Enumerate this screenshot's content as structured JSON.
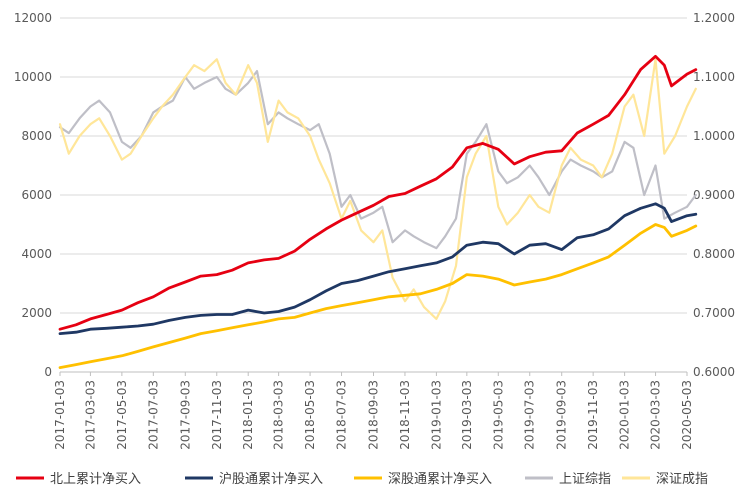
{
  "chart_data": {
    "type": "line",
    "title": "",
    "xlabel": "",
    "ylabel": "",
    "y_left_range": [
      0,
      12000
    ],
    "y_left_ticks": [
      0,
      2000,
      4000,
      6000,
      8000,
      10000,
      12000
    ],
    "y_right_range": [
      0.6,
      1.2
    ],
    "y_right_ticks": [
      "0.6000",
      "0.7000",
      "0.8000",
      "0.9000",
      "1.0000",
      "1.1000",
      "1.2000"
    ],
    "x_ticks": [
      "2017-01-03",
      "2017-03-03",
      "2017-05-03",
      "2017-07-03",
      "2017-09-03",
      "2017-11-03",
      "2018-01-03",
      "2018-03-03",
      "2018-05-03",
      "2018-07-03",
      "2018-09-03",
      "2018-11-03",
      "2019-01-03",
      "2019-03-03",
      "2019-05-03",
      "2019-07-03",
      "2019-09-03",
      "2019-11-03",
      "2020-01-03",
      "2020-03-03",
      "2020-05-03"
    ],
    "grid": "horizontal",
    "legend_position": "bottom",
    "series": [
      {
        "name": "北上累计净买入",
        "axis": "left",
        "color": "#e60012",
        "points": [
          [
            "2017-01-03",
            1450
          ],
          [
            "2017-02-03",
            1600
          ],
          [
            "2017-03-03",
            1800
          ],
          [
            "2017-04-03",
            1950
          ],
          [
            "2017-05-03",
            2100
          ],
          [
            "2017-06-03",
            2350
          ],
          [
            "2017-07-03",
            2550
          ],
          [
            "2017-08-03",
            2850
          ],
          [
            "2017-09-03",
            3050
          ],
          [
            "2017-10-03",
            3250
          ],
          [
            "2017-11-03",
            3300
          ],
          [
            "2017-12-03",
            3450
          ],
          [
            "2018-01-03",
            3700
          ],
          [
            "2018-02-03",
            3800
          ],
          [
            "2018-03-03",
            3850
          ],
          [
            "2018-04-03",
            4100
          ],
          [
            "2018-05-03",
            4500
          ],
          [
            "2018-06-03",
            4850
          ],
          [
            "2018-07-03",
            5150
          ],
          [
            "2018-08-03",
            5400
          ],
          [
            "2018-09-03",
            5650
          ],
          [
            "2018-10-03",
            5950
          ],
          [
            "2018-11-03",
            6050
          ],
          [
            "2018-12-03",
            6300
          ],
          [
            "2019-01-03",
            6550
          ],
          [
            "2019-02-03",
            6950
          ],
          [
            "2019-03-03",
            7600
          ],
          [
            "2019-04-03",
            7750
          ],
          [
            "2019-05-03",
            7550
          ],
          [
            "2019-06-03",
            7050
          ],
          [
            "2019-07-03",
            7300
          ],
          [
            "2019-08-03",
            7450
          ],
          [
            "2019-09-03",
            7500
          ],
          [
            "2019-10-03",
            8100
          ],
          [
            "2019-11-03",
            8400
          ],
          [
            "2019-12-03",
            8700
          ],
          [
            "2020-01-03",
            9400
          ],
          [
            "2020-02-03",
            10250
          ],
          [
            "2020-03-03",
            10700
          ],
          [
            "2020-03-20",
            10400
          ],
          [
            "2020-04-03",
            9700
          ],
          [
            "2020-05-03",
            10100
          ],
          [
            "2020-05-20",
            10250
          ]
        ]
      },
      {
        "name": "沪股通累计净买入",
        "axis": "left",
        "color": "#1f3864",
        "points": [
          [
            "2017-01-03",
            1300
          ],
          [
            "2017-02-03",
            1350
          ],
          [
            "2017-03-03",
            1450
          ],
          [
            "2017-04-03",
            1480
          ],
          [
            "2017-05-03",
            1520
          ],
          [
            "2017-06-03",
            1560
          ],
          [
            "2017-07-03",
            1620
          ],
          [
            "2017-08-03",
            1750
          ],
          [
            "2017-09-03",
            1850
          ],
          [
            "2017-10-03",
            1920
          ],
          [
            "2017-11-03",
            1950
          ],
          [
            "2017-12-03",
            1950
          ],
          [
            "2018-01-03",
            2100
          ],
          [
            "2018-02-03",
            2000
          ],
          [
            "2018-03-03",
            2050
          ],
          [
            "2018-04-03",
            2200
          ],
          [
            "2018-05-03",
            2450
          ],
          [
            "2018-06-03",
            2750
          ],
          [
            "2018-07-03",
            3000
          ],
          [
            "2018-08-03",
            3100
          ],
          [
            "2018-09-03",
            3250
          ],
          [
            "2018-10-03",
            3400
          ],
          [
            "2018-11-03",
            3500
          ],
          [
            "2018-12-03",
            3600
          ],
          [
            "2019-01-03",
            3700
          ],
          [
            "2019-02-03",
            3900
          ],
          [
            "2019-03-03",
            4300
          ],
          [
            "2019-04-03",
            4400
          ],
          [
            "2019-05-03",
            4350
          ],
          [
            "2019-06-03",
            4000
          ],
          [
            "2019-07-03",
            4300
          ],
          [
            "2019-08-03",
            4350
          ],
          [
            "2019-09-03",
            4150
          ],
          [
            "2019-10-03",
            4550
          ],
          [
            "2019-11-03",
            4650
          ],
          [
            "2019-12-03",
            4850
          ],
          [
            "2020-01-03",
            5300
          ],
          [
            "2020-02-03",
            5550
          ],
          [
            "2020-03-03",
            5700
          ],
          [
            "2020-03-20",
            5550
          ],
          [
            "2020-04-03",
            5100
          ],
          [
            "2020-05-03",
            5300
          ],
          [
            "2020-05-20",
            5350
          ]
        ]
      },
      {
        "name": "深股通累计净买入",
        "axis": "left",
        "color": "#ffc000",
        "points": [
          [
            "2017-01-03",
            150
          ],
          [
            "2017-02-03",
            250
          ],
          [
            "2017-03-03",
            350
          ],
          [
            "2017-04-03",
            450
          ],
          [
            "2017-05-03",
            550
          ],
          [
            "2017-06-03",
            700
          ],
          [
            "2017-07-03",
            850
          ],
          [
            "2017-08-03",
            1000
          ],
          [
            "2017-09-03",
            1150
          ],
          [
            "2017-10-03",
            1300
          ],
          [
            "2017-11-03",
            1400
          ],
          [
            "2017-12-03",
            1500
          ],
          [
            "2018-01-03",
            1600
          ],
          [
            "2018-02-03",
            1700
          ],
          [
            "2018-03-03",
            1800
          ],
          [
            "2018-04-03",
            1850
          ],
          [
            "2018-05-03",
            2000
          ],
          [
            "2018-06-03",
            2150
          ],
          [
            "2018-07-03",
            2250
          ],
          [
            "2018-08-03",
            2350
          ],
          [
            "2018-09-03",
            2450
          ],
          [
            "2018-10-03",
            2550
          ],
          [
            "2018-11-03",
            2600
          ],
          [
            "2018-12-03",
            2650
          ],
          [
            "2019-01-03",
            2800
          ],
          [
            "2019-02-03",
            3000
          ],
          [
            "2019-03-03",
            3300
          ],
          [
            "2019-04-03",
            3250
          ],
          [
            "2019-05-03",
            3150
          ],
          [
            "2019-06-03",
            2950
          ],
          [
            "2019-07-03",
            3050
          ],
          [
            "2019-08-03",
            3150
          ],
          [
            "2019-09-03",
            3300
          ],
          [
            "2019-10-03",
            3500
          ],
          [
            "2019-11-03",
            3700
          ],
          [
            "2019-12-03",
            3900
          ],
          [
            "2020-01-03",
            4300
          ],
          [
            "2020-02-03",
            4700
          ],
          [
            "2020-03-03",
            5000
          ],
          [
            "2020-03-20",
            4900
          ],
          [
            "2020-04-03",
            4600
          ],
          [
            "2020-05-03",
            4800
          ],
          [
            "2020-05-20",
            4950
          ]
        ]
      },
      {
        "name": "上证综指",
        "axis": "right",
        "color": "#bfbfc7",
        "points": [
          [
            "2017-01-03",
            1.015
          ],
          [
            "2017-01-20",
            1.005
          ],
          [
            "2017-02-10",
            1.03
          ],
          [
            "2017-03-03",
            1.05
          ],
          [
            "2017-03-20",
            1.06
          ],
          [
            "2017-04-10",
            1.04
          ],
          [
            "2017-05-03",
            0.99
          ],
          [
            "2017-05-20",
            0.98
          ],
          [
            "2017-06-10",
            1.0
          ],
          [
            "2017-07-03",
            1.04
          ],
          [
            "2017-07-20",
            1.05
          ],
          [
            "2017-08-10",
            1.06
          ],
          [
            "2017-09-03",
            1.1
          ],
          [
            "2017-09-20",
            1.08
          ],
          [
            "2017-10-10",
            1.09
          ],
          [
            "2017-11-03",
            1.1
          ],
          [
            "2017-11-20",
            1.08
          ],
          [
            "2017-12-10",
            1.07
          ],
          [
            "2018-01-03",
            1.09
          ],
          [
            "2018-01-20",
            1.11
          ],
          [
            "2018-02-10",
            1.02
          ],
          [
            "2018-03-03",
            1.04
          ],
          [
            "2018-03-20",
            1.03
          ],
          [
            "2018-04-10",
            1.02
          ],
          [
            "2018-05-03",
            1.01
          ],
          [
            "2018-05-20",
            1.02
          ],
          [
            "2018-06-10",
            0.97
          ],
          [
            "2018-07-03",
            0.88
          ],
          [
            "2018-07-20",
            0.9
          ],
          [
            "2018-08-10",
            0.86
          ],
          [
            "2018-09-03",
            0.87
          ],
          [
            "2018-09-20",
            0.88
          ],
          [
            "2018-10-10",
            0.82
          ],
          [
            "2018-11-03",
            0.84
          ],
          [
            "2018-11-20",
            0.83
          ],
          [
            "2018-12-10",
            0.82
          ],
          [
            "2019-01-03",
            0.81
          ],
          [
            "2019-01-20",
            0.83
          ],
          [
            "2019-02-10",
            0.86
          ],
          [
            "2019-03-03",
            0.97
          ],
          [
            "2019-03-20",
            0.99
          ],
          [
            "2019-04-10",
            1.02
          ],
          [
            "2019-05-03",
            0.94
          ],
          [
            "2019-05-20",
            0.92
          ],
          [
            "2019-06-10",
            0.93
          ],
          [
            "2019-07-03",
            0.95
          ],
          [
            "2019-07-20",
            0.93
          ],
          [
            "2019-08-10",
            0.9
          ],
          [
            "2019-09-03",
            0.94
          ],
          [
            "2019-09-20",
            0.96
          ],
          [
            "2019-10-10",
            0.95
          ],
          [
            "2019-11-03",
            0.94
          ],
          [
            "2019-11-20",
            0.93
          ],
          [
            "2019-12-10",
            0.94
          ],
          [
            "2020-01-03",
            0.99
          ],
          [
            "2020-01-20",
            0.98
          ],
          [
            "2020-02-10",
            0.9
          ],
          [
            "2020-03-03",
            0.95
          ],
          [
            "2020-03-20",
            0.86
          ],
          [
            "2020-04-10",
            0.87
          ],
          [
            "2020-05-03",
            0.88
          ],
          [
            "2020-05-20",
            0.9
          ]
        ]
      },
      {
        "name": "深证成指",
        "axis": "right",
        "color": "#ffe699",
        "points": [
          [
            "2017-01-03",
            1.02
          ],
          [
            "2017-01-20",
            0.97
          ],
          [
            "2017-02-10",
            1.0
          ],
          [
            "2017-03-03",
            1.02
          ],
          [
            "2017-03-20",
            1.03
          ],
          [
            "2017-04-10",
            1.0
          ],
          [
            "2017-05-03",
            0.96
          ],
          [
            "2017-05-20",
            0.97
          ],
          [
            "2017-06-10",
            1.0
          ],
          [
            "2017-07-03",
            1.03
          ],
          [
            "2017-07-20",
            1.05
          ],
          [
            "2017-08-10",
            1.07
          ],
          [
            "2017-09-03",
            1.1
          ],
          [
            "2017-09-20",
            1.12
          ],
          [
            "2017-10-10",
            1.11
          ],
          [
            "2017-11-03",
            1.13
          ],
          [
            "2017-11-20",
            1.09
          ],
          [
            "2017-12-10",
            1.07
          ],
          [
            "2018-01-03",
            1.12
          ],
          [
            "2018-01-20",
            1.09
          ],
          [
            "2018-02-10",
            0.99
          ],
          [
            "2018-03-03",
            1.06
          ],
          [
            "2018-03-20",
            1.04
          ],
          [
            "2018-04-10",
            1.03
          ],
          [
            "2018-05-03",
            1.0
          ],
          [
            "2018-05-20",
            0.96
          ],
          [
            "2018-06-10",
            0.92
          ],
          [
            "2018-07-03",
            0.86
          ],
          [
            "2018-07-20",
            0.89
          ],
          [
            "2018-08-10",
            0.84
          ],
          [
            "2018-09-03",
            0.82
          ],
          [
            "2018-09-20",
            0.84
          ],
          [
            "2018-10-10",
            0.76
          ],
          [
            "2018-11-03",
            0.72
          ],
          [
            "2018-11-20",
            0.74
          ],
          [
            "2018-12-10",
            0.71
          ],
          [
            "2019-01-03",
            0.69
          ],
          [
            "2019-01-20",
            0.72
          ],
          [
            "2019-02-10",
            0.78
          ],
          [
            "2019-03-03",
            0.93
          ],
          [
            "2019-03-20",
            0.97
          ],
          [
            "2019-04-10",
            1.0
          ],
          [
            "2019-05-03",
            0.88
          ],
          [
            "2019-05-20",
            0.85
          ],
          [
            "2019-06-10",
            0.87
          ],
          [
            "2019-07-03",
            0.9
          ],
          [
            "2019-07-20",
            0.88
          ],
          [
            "2019-08-10",
            0.87
          ],
          [
            "2019-09-03",
            0.95
          ],
          [
            "2019-09-20",
            0.98
          ],
          [
            "2019-10-10",
            0.96
          ],
          [
            "2019-11-03",
            0.95
          ],
          [
            "2019-11-20",
            0.93
          ],
          [
            "2019-12-10",
            0.97
          ],
          [
            "2020-01-03",
            1.05
          ],
          [
            "2020-01-20",
            1.07
          ],
          [
            "2020-02-10",
            1.0
          ],
          [
            "2020-03-03",
            1.13
          ],
          [
            "2020-03-20",
            0.97
          ],
          [
            "2020-04-10",
            1.0
          ],
          [
            "2020-05-03",
            1.05
          ],
          [
            "2020-05-20",
            1.08
          ]
        ]
      }
    ]
  }
}
